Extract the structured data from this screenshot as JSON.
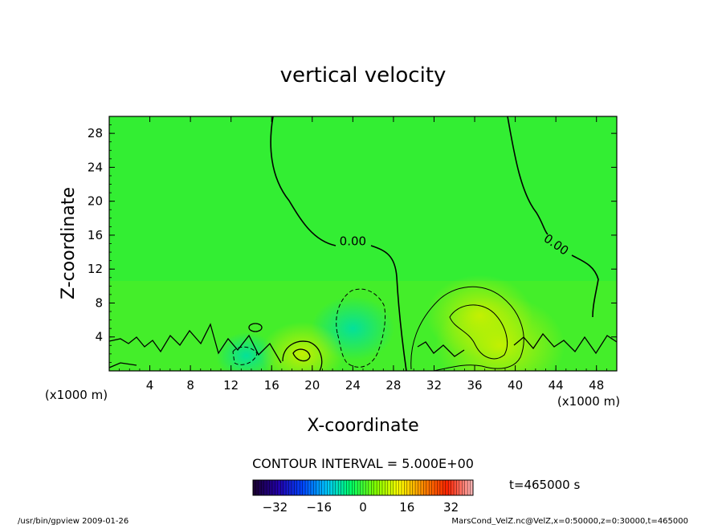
{
  "chart_data": {
    "type": "heatmap",
    "title": "vertical velocity",
    "xlabel": "X-coordinate",
    "ylabel": "Z-coordinate",
    "x_unit_left": "(x1000 m)",
    "x_unit_right": "(x1000 m)",
    "xlim": [
      0,
      50
    ],
    "ylim": [
      0,
      30
    ],
    "x_ticks": [
      4,
      8,
      12,
      16,
      20,
      24,
      28,
      32,
      36,
      40,
      44,
      48
    ],
    "y_ticks": [
      4,
      8,
      12,
      16,
      20,
      24,
      28
    ],
    "contour_interval_text": "CONTOUR INTERVAL = 5.000E+00",
    "contour_labels": [
      {
        "text": "0.00",
        "x": 24.0,
        "y": 14.8
      },
      {
        "text": "0.00",
        "x": 43.8,
        "y": 14.5
      }
    ],
    "features": [
      {
        "sign": "negative",
        "x": 24.0,
        "y": 5.0,
        "value": -10
      },
      {
        "sign": "negative",
        "x": 13.5,
        "y": 1.8,
        "value": -5
      },
      {
        "sign": "positive",
        "x": 19.0,
        "y": 2.0,
        "value": 10
      },
      {
        "sign": "positive",
        "x": 36.5,
        "y": 6.5,
        "value": 15
      },
      {
        "sign": "positive",
        "x": 38.5,
        "y": 3.0,
        "value": 20
      }
    ],
    "colorbar": {
      "ticks": [
        "-32",
        "-16",
        "0",
        "16",
        "32"
      ],
      "range": [
        -40,
        40
      ],
      "colors": [
        "#1a0033",
        "#2200aa",
        "#0044ff",
        "#00c8ff",
        "#00ff66",
        "#7fff00",
        "#ffff00",
        "#ff8800",
        "#ff2200",
        "#ffb0b0"
      ]
    },
    "time_text": "t=465000 s",
    "footer_left": "/usr/bin/gpview   2009-01-26",
    "footer_right": "MarsCond_VelZ.nc@VelZ,x=0:50000,z=0:30000,t=465000"
  }
}
